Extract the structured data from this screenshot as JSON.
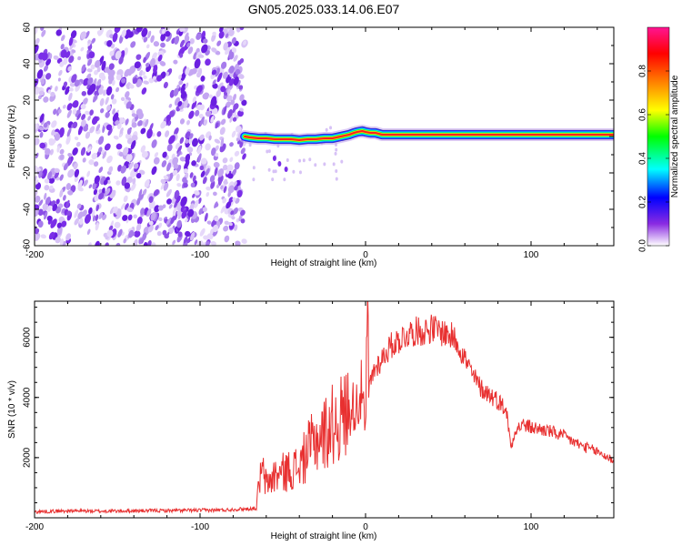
{
  "figure_title": "GN05.2025.033.14.06.E07",
  "chart_data": [
    {
      "type": "heatmap",
      "name": "spectrogram",
      "xlabel": "Height of straight line (km)",
      "ylabel": "Frequency (Hz)",
      "xlim": [
        -200,
        150
      ],
      "ylim": [
        -60,
        60
      ],
      "xticks": [
        -200,
        -100,
        0,
        100
      ],
      "xtick_labels": [
        "-200",
        "-100",
        "0",
        "100"
      ],
      "yticks": [
        -60,
        -40,
        -20,
        0,
        20,
        40,
        60
      ],
      "ytick_labels": [
        "-60",
        "-40",
        "-20",
        "0",
        "20",
        "40",
        "60"
      ],
      "noise_region_x": [
        -200,
        -73
      ],
      "ridge": {
        "x": [
          -73,
          -70,
          -65,
          -60,
          -55,
          -50,
          -45,
          -40,
          -35,
          -30,
          -25,
          -20,
          -15,
          -10,
          -7,
          -5,
          -2,
          0,
          3,
          6,
          8,
          10,
          15,
          20,
          50,
          100,
          150
        ],
        "y": [
          0,
          -0.5,
          -1,
          -1,
          -1.5,
          -1.5,
          -1.5,
          -2,
          -1.5,
          -1.5,
          -1,
          -1,
          0,
          1,
          2,
          2.5,
          3,
          2.5,
          2,
          2,
          1.5,
          1,
          1,
          1,
          1,
          1,
          1
        ]
      },
      "colorbar": {
        "label": "Normalized spectral amplitude",
        "range": [
          0,
          1
        ],
        "ticks": [
          0.0,
          0.2,
          0.4,
          0.6,
          0.8
        ],
        "tick_labels": [
          "0.0",
          "0.2",
          "0.4",
          "0.6",
          "0.8"
        ],
        "colormap": [
          "#ffffff",
          "#8a2be2",
          "#0000ff",
          "#00ffff",
          "#00ff00",
          "#ffff00",
          "#ff8000",
          "#ff0000",
          "#ff1493"
        ]
      },
      "grid": false
    },
    {
      "type": "line",
      "name": "snr",
      "xlabel": "Height of straight line (km)",
      "ylabel": "SNR (10 * v/v)",
      "xlim": [
        -200,
        150
      ],
      "ylim": [
        0,
        7200
      ],
      "xticks": [
        -200,
        -100,
        0,
        100
      ],
      "xtick_labels": [
        "-200",
        "-100",
        "0",
        "100"
      ],
      "yticks": [
        2000,
        4000,
        6000
      ],
      "ytick_labels": [
        "2000",
        "4000",
        "6000"
      ],
      "line_color": "#e83030",
      "series": [
        {
          "x": [
            -200,
            -180,
            -160,
            -140,
            -120,
            -100,
            -85,
            -80,
            -70,
            -66,
            -64,
            -62,
            -60,
            -55,
            -50,
            -45,
            -40,
            -35,
            -30,
            -25,
            -20,
            -15,
            -10,
            -5,
            -2,
            0,
            1,
            2,
            5,
            10,
            15,
            20,
            25,
            30,
            35,
            40,
            45,
            50,
            55,
            60,
            65,
            70,
            75,
            80,
            85,
            88,
            90,
            95,
            100,
            110,
            120,
            130,
            140,
            150
          ],
          "y": [
            200,
            230,
            220,
            230,
            240,
            250,
            260,
            280,
            300,
            320,
            1300,
            1500,
            1100,
            1400,
            1500,
            1600,
            1700,
            2200,
            2600,
            2800,
            3100,
            3300,
            3600,
            3800,
            4300,
            2400,
            7300,
            4300,
            4900,
            5300,
            5700,
            5900,
            6100,
            6200,
            6200,
            6300,
            6200,
            6100,
            5900,
            5300,
            4700,
            4300,
            4100,
            3900,
            3600,
            2300,
            2900,
            3100,
            3000,
            2900,
            2700,
            2400,
            2200,
            1900
          ]
        }
      ],
      "grid": false
    }
  ]
}
